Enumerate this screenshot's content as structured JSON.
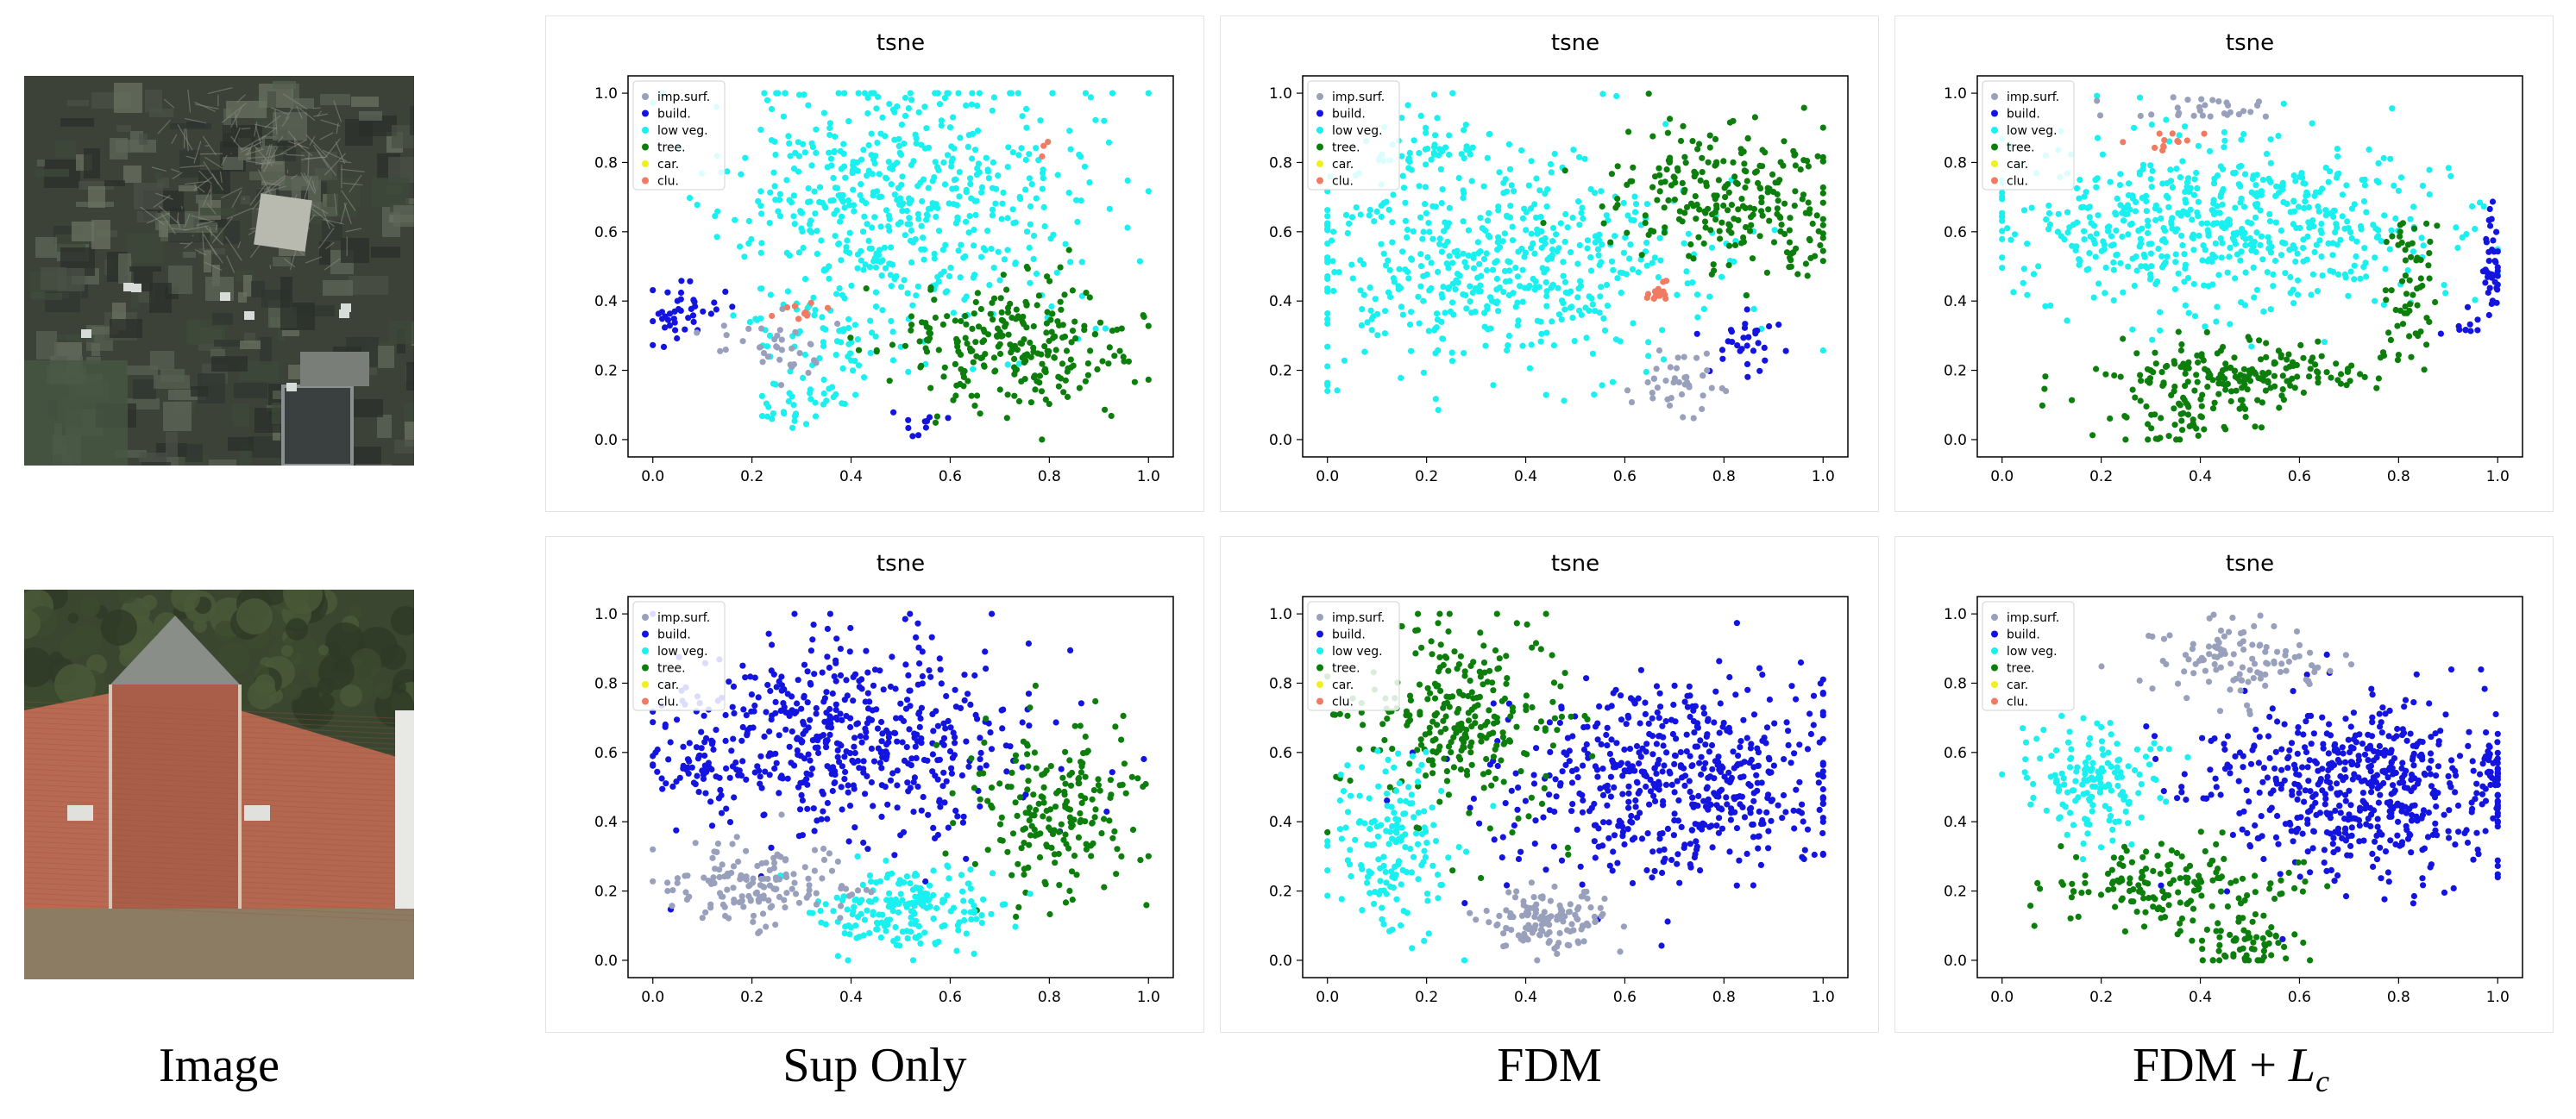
{
  "columns": {
    "image": "Image",
    "sup_only": "Sup Only",
    "fdm": "FDM",
    "fdm_lc_main": "FDM + ",
    "fdm_lc_var": "L",
    "fdm_lc_sub": "c"
  },
  "colors": {
    "imp_surf": "#98a0bc",
    "build": "#1414e0",
    "low_veg": "#19f0f0",
    "tree": "#0c7e0c",
    "car": "#f0f01a",
    "clu": "#f07b62"
  },
  "images": [
    {
      "name": "aerial-image-garden",
      "kind": "garden"
    },
    {
      "name": "aerial-image-rooftop",
      "kind": "rooftop"
    }
  ],
  "chart_data": [
    {
      "type": "scatter",
      "row": 1,
      "method": "Sup Only",
      "title": "tsne",
      "xlim": [
        -0.05,
        1.05
      ],
      "ylim": [
        -0.05,
        1.05
      ],
      "xticks": [
        "0.0",
        "0.2",
        "0.4",
        "0.6",
        "0.8",
        "1.0"
      ],
      "yticks": [
        "0.0",
        "0.2",
        "0.4",
        "0.6",
        "0.8",
        "1.0"
      ],
      "legend_position": "top-left",
      "legend": [
        "imp.surf.",
        "build.",
        "low veg.",
        "tree.",
        "car.",
        "clu."
      ],
      "seed": 11,
      "series": [
        {
          "name": "low veg.",
          "color_key": "low_veg",
          "clusters": [
            [
              0.5,
              0.7,
              0.18,
              0.19,
              560
            ],
            [
              0.35,
              0.3,
              0.1,
              0.1,
              60
            ],
            [
              0.3,
              0.1,
              0.05,
              0.04,
              30
            ]
          ]
        },
        {
          "name": "tree.",
          "color_key": "tree",
          "clusters": [
            [
              0.72,
              0.28,
              0.12,
              0.09,
              260
            ]
          ]
        },
        {
          "name": "build.",
          "color_key": "build",
          "clusters": [
            [
              0.05,
              0.37,
              0.04,
              0.04,
              40
            ],
            [
              0.55,
              0.05,
              0.03,
              0.02,
              10
            ]
          ]
        },
        {
          "name": "imp.surf.",
          "color_key": "imp_surf",
          "clusters": [
            [
              0.25,
              0.27,
              0.06,
              0.05,
              35
            ]
          ]
        },
        {
          "name": "clu.",
          "color_key": "clu",
          "clusters": [
            [
              0.31,
              0.37,
              0.03,
              0.02,
              10
            ],
            [
              0.79,
              0.85,
              0.01,
              0.01,
              3
            ]
          ]
        }
      ]
    },
    {
      "type": "scatter",
      "row": 1,
      "method": "FDM",
      "title": "tsne",
      "xlim": [
        -0.05,
        1.05
      ],
      "ylim": [
        -0.05,
        1.05
      ],
      "xticks": [
        "0.0",
        "0.2",
        "0.4",
        "0.6",
        "0.8",
        "1.0"
      ],
      "yticks": [
        "0.0",
        "0.2",
        "0.4",
        "0.6",
        "0.8",
        "1.0"
      ],
      "legend_position": "top-left",
      "legend": [
        "imp.surf.",
        "build.",
        "low veg.",
        "tree.",
        "car.",
        "clu."
      ],
      "seed": 23,
      "series": [
        {
          "name": "low veg.",
          "color_key": "low_veg",
          "clusters": [
            [
              0.33,
              0.5,
              0.2,
              0.15,
              520
            ],
            [
              0.2,
              0.85,
              0.06,
              0.06,
              50
            ]
          ]
        },
        {
          "name": "tree.",
          "color_key": "tree",
          "clusters": [
            [
              0.8,
              0.7,
              0.12,
              0.1,
              240
            ],
            [
              0.93,
              0.5,
              0.03,
              0.05,
              15
            ]
          ]
        },
        {
          "name": "build.",
          "color_key": "build",
          "clusters": [
            [
              0.85,
              0.28,
              0.04,
              0.04,
              30
            ]
          ]
        },
        {
          "name": "imp.surf.",
          "color_key": "imp_surf",
          "clusters": [
            [
              0.72,
              0.17,
              0.05,
              0.05,
              40
            ]
          ]
        },
        {
          "name": "clu.",
          "color_key": "clu",
          "clusters": [
            [
              0.67,
              0.42,
              0.015,
              0.015,
              15
            ]
          ]
        }
      ]
    },
    {
      "type": "scatter",
      "row": 1,
      "method": "FDM + Lc",
      "title": "tsne",
      "xlim": [
        -0.05,
        1.05
      ],
      "ylim": [
        -0.05,
        1.05
      ],
      "xticks": [
        "0.0",
        "0.2",
        "0.4",
        "0.6",
        "0.8",
        "1.0"
      ],
      "yticks": [
        "0.0",
        "0.2",
        "0.4",
        "0.6",
        "0.8",
        "1.0"
      ],
      "legend_position": "top-left",
      "legend": [
        "imp.surf.",
        "build.",
        "low veg.",
        "tree.",
        "car.",
        "clu."
      ],
      "seed": 37,
      "series": [
        {
          "name": "low veg.",
          "color_key": "low_veg",
          "clusters": [
            [
              0.45,
              0.62,
              0.22,
              0.12,
              600
            ]
          ]
        },
        {
          "name": "tree.",
          "color_key": "tree",
          "clusters": [
            [
              0.45,
              0.2,
              0.14,
              0.05,
              180
            ],
            [
              0.35,
              0.07,
              0.08,
              0.04,
              60
            ],
            [
              0.82,
              0.45,
              0.03,
              0.12,
              60
            ]
          ]
        },
        {
          "name": "build.",
          "color_key": "build",
          "clusters": [
            [
              0.99,
              0.5,
              0.01,
              0.07,
              40
            ],
            [
              0.92,
              0.33,
              0.03,
              0.02,
              10
            ]
          ]
        },
        {
          "name": "imp.surf.",
          "color_key": "imp_surf",
          "clusters": [
            [
              0.4,
              0.95,
              0.1,
              0.02,
              30
            ]
          ]
        },
        {
          "name": "clu.",
          "color_key": "clu",
          "clusters": [
            [
              0.33,
              0.86,
              0.03,
              0.015,
              12
            ]
          ]
        }
      ]
    },
    {
      "type": "scatter",
      "row": 2,
      "method": "Sup Only",
      "title": "tsne",
      "xlim": [
        -0.05,
        1.05
      ],
      "ylim": [
        -0.05,
        1.05
      ],
      "xticks": [
        "0.0",
        "0.2",
        "0.4",
        "0.6",
        "0.8",
        "1.0"
      ],
      "yticks": [
        "0.0",
        "0.2",
        "0.4",
        "0.6",
        "0.8",
        "1.0"
      ],
      "legend_position": "top-left",
      "legend": [
        "imp.surf.",
        "build.",
        "low veg.",
        "tree.",
        "car.",
        "clu."
      ],
      "seed": 41,
      "series": [
        {
          "name": "build.",
          "color_key": "build",
          "clusters": [
            [
              0.4,
              0.65,
              0.18,
              0.15,
              520
            ],
            [
              0.08,
              0.55,
              0.04,
              0.04,
              40
            ]
          ]
        },
        {
          "name": "tree.",
          "color_key": "tree",
          "clusters": [
            [
              0.82,
              0.42,
              0.08,
              0.13,
              200
            ]
          ]
        },
        {
          "name": "low veg.",
          "color_key": "low_veg",
          "clusters": [
            [
              0.52,
              0.15,
              0.09,
              0.06,
              200
            ]
          ]
        },
        {
          "name": "imp.surf.",
          "color_key": "imp_surf",
          "clusters": [
            [
              0.2,
              0.22,
              0.09,
              0.06,
              150
            ]
          ]
        }
      ]
    },
    {
      "type": "scatter",
      "row": 2,
      "method": "FDM",
      "title": "tsne",
      "xlim": [
        -0.05,
        1.05
      ],
      "ylim": [
        -0.05,
        1.05
      ],
      "xticks": [
        "0.0",
        "0.2",
        "0.4",
        "0.6",
        "0.8",
        "1.0"
      ],
      "yticks": [
        "0.0",
        "0.2",
        "0.4",
        "0.6",
        "0.8",
        "1.0"
      ],
      "legend_position": "top-left",
      "legend": [
        "imp.surf.",
        "build.",
        "low veg.",
        "tree.",
        "car.",
        "clu."
      ],
      "seed": 53,
      "series": [
        {
          "name": "build.",
          "color_key": "build",
          "clusters": [
            [
              0.7,
              0.52,
              0.17,
              0.14,
              560
            ]
          ]
        },
        {
          "name": "tree.",
          "color_key": "tree",
          "clusters": [
            [
              0.28,
              0.7,
              0.1,
              0.15,
              270
            ]
          ]
        },
        {
          "name": "low veg.",
          "color_key": "low_veg",
          "clusters": [
            [
              0.13,
              0.33,
              0.06,
              0.12,
              160
            ]
          ]
        },
        {
          "name": "imp.surf.",
          "color_key": "imp_surf",
          "clusters": [
            [
              0.45,
              0.12,
              0.06,
              0.05,
              130
            ]
          ]
        }
      ]
    },
    {
      "type": "scatter",
      "row": 2,
      "method": "FDM + Lc",
      "title": "tsne",
      "xlim": [
        -0.05,
        1.05
      ],
      "ylim": [
        -0.05,
        1.05
      ],
      "xticks": [
        "0.0",
        "0.2",
        "0.4",
        "0.6",
        "0.8",
        "1.0"
      ],
      "yticks": [
        "0.0",
        "0.2",
        "0.4",
        "0.6",
        "0.8",
        "1.0"
      ],
      "legend_position": "top-left",
      "legend": [
        "imp.surf.",
        "build.",
        "low veg.",
        "tree.",
        "car.",
        "clu."
      ],
      "seed": 67,
      "series": [
        {
          "name": "build.",
          "color_key": "build",
          "clusters": [
            [
              0.72,
              0.5,
              0.16,
              0.12,
              560
            ],
            [
              0.98,
              0.55,
              0.015,
              0.05,
              25
            ]
          ]
        },
        {
          "name": "tree.",
          "color_key": "tree",
          "clusters": [
            [
              0.35,
              0.22,
              0.12,
              0.06,
              160
            ],
            [
              0.5,
              0.05,
              0.06,
              0.04,
              60
            ]
          ]
        },
        {
          "name": "low veg.",
          "color_key": "low_veg",
          "clusters": [
            [
              0.2,
              0.52,
              0.08,
              0.08,
              150
            ]
          ]
        },
        {
          "name": "imp.surf.",
          "color_key": "imp_surf",
          "clusters": [
            [
              0.48,
              0.86,
              0.1,
              0.06,
              110
            ]
          ]
        }
      ]
    }
  ]
}
